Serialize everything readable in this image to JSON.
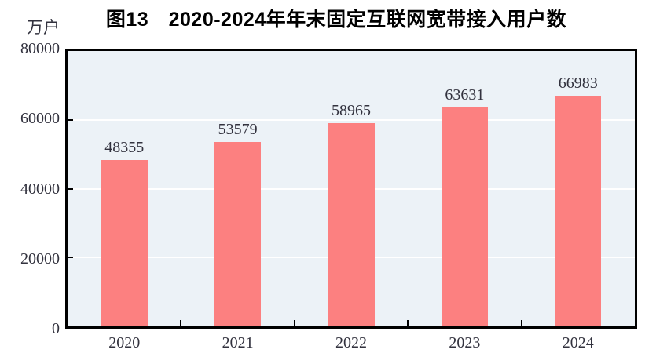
{
  "chart_data": {
    "type": "bar",
    "title": "图13　2020-2024年年末固定互联网宽带接入用户数",
    "unit_label": "万户",
    "categories": [
      "2020",
      "2021",
      "2022",
      "2023",
      "2024"
    ],
    "values": [
      48355,
      53579,
      58965,
      63631,
      66983
    ],
    "series_name": "年末固定互联网宽带接入用户数",
    "xlabel": "",
    "ylabel": "万户",
    "ylim": [
      0,
      80000
    ],
    "yticks": [
      0,
      20000,
      40000,
      60000,
      80000
    ],
    "grid": true,
    "gridline_axis": "y",
    "legend": "none",
    "data_labels_shown": true,
    "colors": {
      "bar": "#FC8080",
      "plot_background": "#ECF2F7",
      "gridline": "#FFFFFF",
      "axis_border": "#000000",
      "tick_mark": "#000000",
      "label_text": "#32323E",
      "title_text": "#000000"
    }
  }
}
